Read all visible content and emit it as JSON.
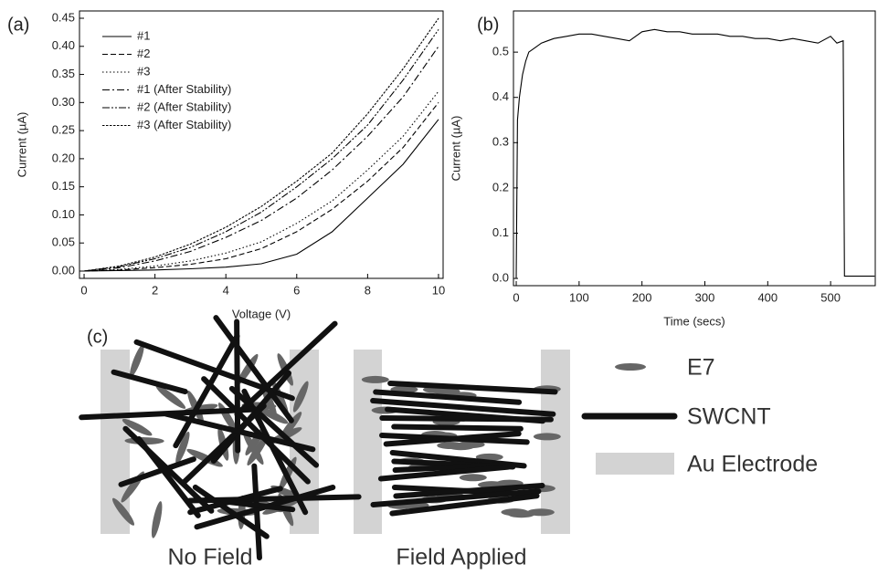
{
  "chart_data": [
    {
      "type": "line",
      "title": "(a)",
      "xlabel": "Voltage (V)",
      "ylabel": "Current (µA)",
      "x": [
        0,
        1,
        2,
        3,
        4,
        5,
        6,
        7,
        8,
        9,
        10
      ],
      "series": [
        {
          "name": "#1",
          "color": "#000000",
          "dash": "none",
          "values": [
            0,
            0.001,
            0.002,
            0.004,
            0.007,
            0.013,
            0.03,
            0.07,
            0.13,
            0.19,
            0.27
          ]
        },
        {
          "name": "#2",
          "color": "#000000",
          "dash": "6,3",
          "values": [
            0,
            0.002,
            0.006,
            0.012,
            0.022,
            0.04,
            0.07,
            0.11,
            0.16,
            0.22,
            0.3
          ]
        },
        {
          "name": "#3",
          "color": "#000000",
          "dash": "1.5,2.5",
          "values": [
            0,
            0.003,
            0.009,
            0.018,
            0.032,
            0.052,
            0.085,
            0.125,
            0.18,
            0.24,
            0.32
          ]
        },
        {
          "name": "#1 (After Stability)",
          "color": "#000000",
          "dash": "8,3,2,3",
          "values": [
            0,
            0.006,
            0.018,
            0.035,
            0.06,
            0.09,
            0.13,
            0.18,
            0.24,
            0.31,
            0.4
          ]
        },
        {
          "name": "#2 (After Stability)",
          "color": "#000000",
          "dash": "8,2,2,2,2,2",
          "values": [
            0,
            0.008,
            0.022,
            0.042,
            0.07,
            0.105,
            0.15,
            0.2,
            0.26,
            0.34,
            0.43
          ]
        },
        {
          "name": "#3 (After Stability)",
          "color": "#000000",
          "dash": "2.5,1.5",
          "values": [
            0,
            0.009,
            0.025,
            0.048,
            0.078,
            0.115,
            0.16,
            0.21,
            0.28,
            0.36,
            0.45
          ]
        }
      ],
      "xlim": [
        -0.13,
        10.13
      ],
      "xticks": [
        0,
        2,
        4,
        6,
        8,
        10
      ],
      "ylim": [
        -0.013,
        0.463
      ],
      "yticks": [
        {
          "value": 0,
          "label": "0.00"
        },
        0.05,
        {
          "value": 0.1,
          "label": "0.10"
        },
        0.15,
        {
          "value": 0.2,
          "label": "0.20"
        },
        0.25,
        {
          "value": 0.3,
          "label": "0.30"
        },
        0.35,
        {
          "value": 0.4,
          "label": "0.40"
        },
        0.45
      ],
      "legend": "upper left"
    },
    {
      "type": "line",
      "title": "(b)",
      "xlabel": "Time (secs)",
      "ylabel": "Current (µA)",
      "x": [
        0,
        2,
        5,
        10,
        15,
        20,
        30,
        40,
        50,
        60,
        80,
        100,
        120,
        140,
        160,
        180,
        200,
        220,
        240,
        260,
        280,
        300,
        320,
        340,
        360,
        380,
        400,
        420,
        440,
        460,
        480,
        500,
        510,
        520,
        522,
        570
      ],
      "values": [
        0,
        0.35,
        0.4,
        0.45,
        0.48,
        0.5,
        0.51,
        0.52,
        0.525,
        0.53,
        0.535,
        0.54,
        0.54,
        0.535,
        0.53,
        0.525,
        0.545,
        0.55,
        0.545,
        0.545,
        0.54,
        0.54,
        0.54,
        0.535,
        0.535,
        0.53,
        0.53,
        0.525,
        0.53,
        0.525,
        0.52,
        0.535,
        0.52,
        0.525,
        0.005,
        0.005
      ],
      "color": "#000000",
      "xlim": [
        -4.4,
        571
      ],
      "xticks": [
        0,
        100,
        200,
        300,
        400,
        500
      ],
      "ylim": [
        -0.016,
        0.591
      ],
      "yticks": [
        {
          "value": 0,
          "label": "0.0"
        },
        0.1,
        0.2,
        0.3,
        0.4,
        0.5
      ]
    }
  ],
  "diagram": {
    "label": "(c)",
    "panels": [
      "No Field",
      "Field Applied"
    ],
    "legend": [
      "E7",
      "SWCNT",
      "Au Electrode"
    ]
  }
}
